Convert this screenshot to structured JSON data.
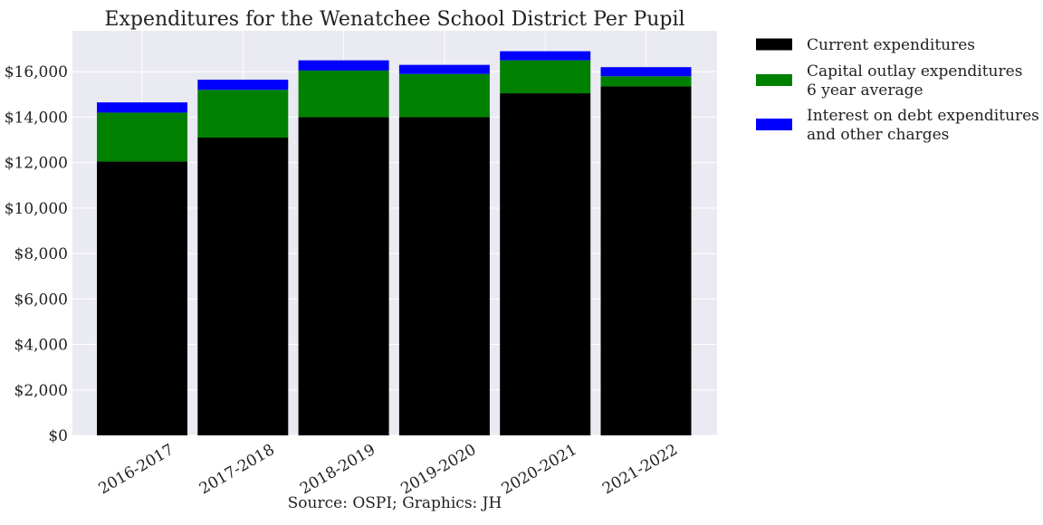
{
  "chart_data": {
    "type": "bar",
    "stacked": true,
    "title": "Expenditures for the Wenatchee School District Per Pupil",
    "source": "Source: OSPI; Graphics: JH",
    "categories": [
      "2016-2017",
      "2017-2018",
      "2018-2019",
      "2019-2020",
      "2020-2021",
      "2021-2022"
    ],
    "series": [
      {
        "name": "Current expenditures",
        "color": "#000000",
        "values": [
          12050,
          13100,
          14000,
          14000,
          15050,
          15350
        ]
      },
      {
        "name_lines": [
          "Capital outlay expenditures",
          "6 year average"
        ],
        "color": "#008000",
        "values": [
          2150,
          2100,
          2050,
          1900,
          1450,
          450
        ]
      },
      {
        "name_lines": [
          "Interest on debt expenditures",
          "and other charges"
        ],
        "color": "#0000ff",
        "values": [
          450,
          450,
          450,
          400,
          400,
          400
        ]
      }
    ],
    "y_ticks": [
      "$0",
      "$2,000",
      "$4,000",
      "$6,000",
      "$8,000",
      "$10,000",
      "$12,000",
      "$14,000",
      "$16,000"
    ],
    "y_tick_values": [
      0,
      2000,
      4000,
      6000,
      8000,
      10000,
      12000,
      14000,
      16000
    ],
    "ylim": [
      0,
      17800
    ],
    "grid": true,
    "legend_position": "outside-right",
    "background_color": "#eaeaf2",
    "grid_color": "#ffffff"
  }
}
